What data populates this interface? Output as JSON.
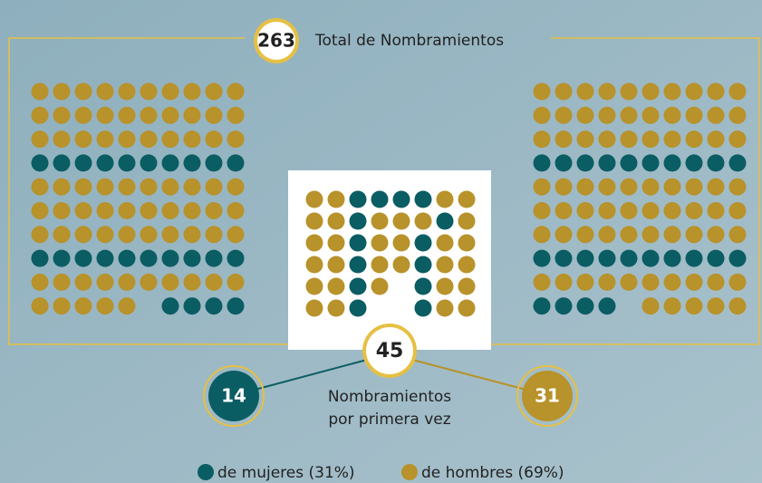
{
  "total": {
    "value": "263",
    "label": "Total de Nombramientos"
  },
  "first_time": {
    "value": "45",
    "label_lines": [
      "Nombramientos",
      "por primera vez"
    ]
  },
  "women": {
    "value": "14"
  },
  "men": {
    "value": "31"
  },
  "legend": [
    "de mujeres (31%)",
    "de hombres (69%)"
  ]
}
